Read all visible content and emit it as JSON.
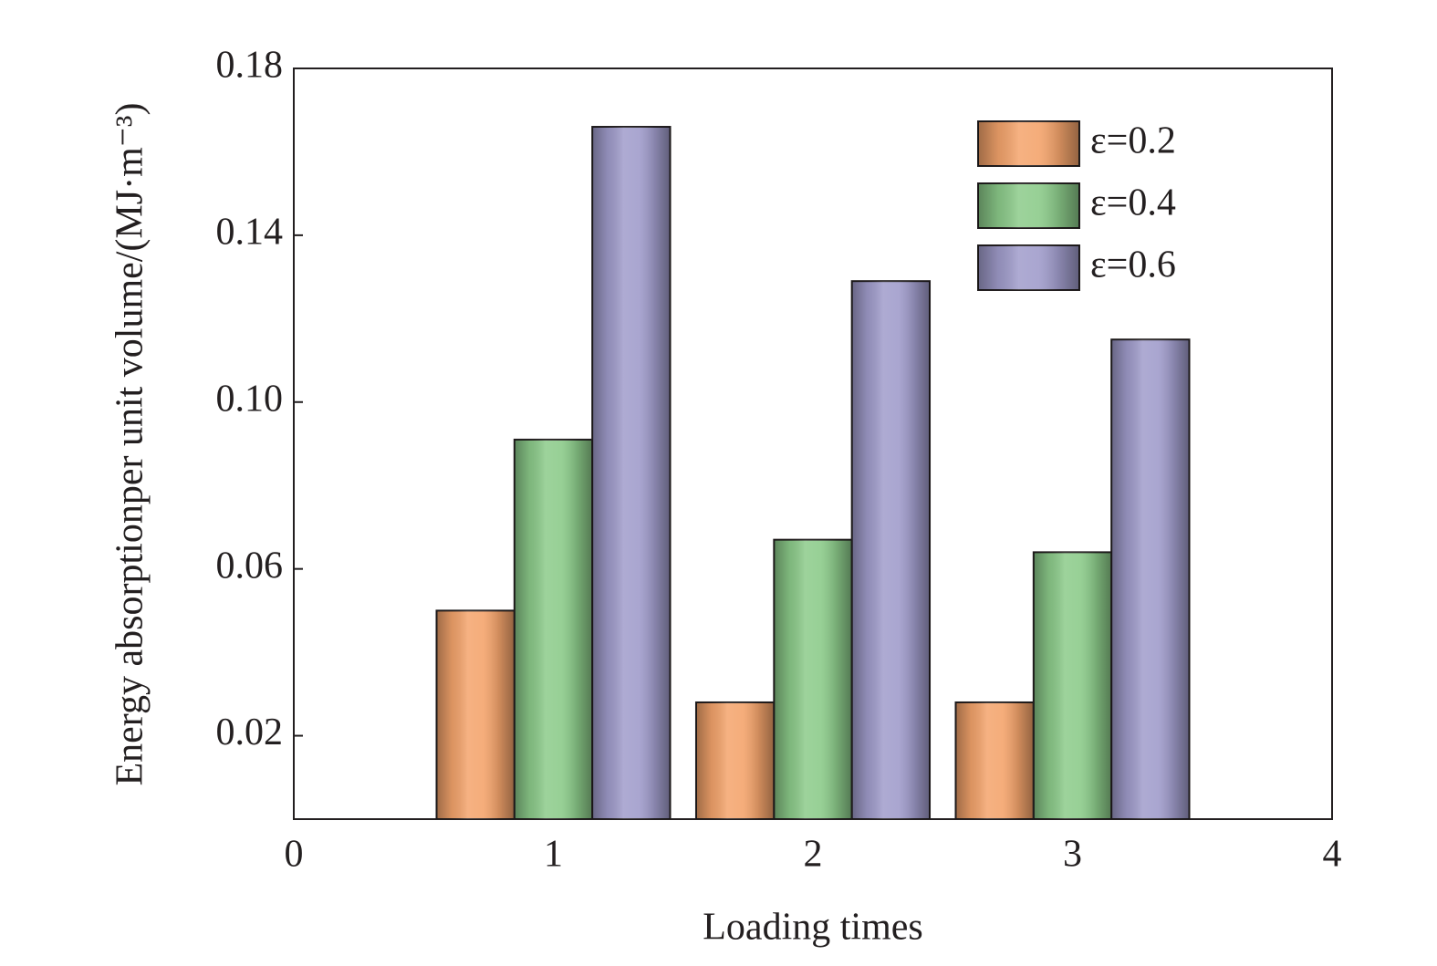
{
  "chart_data": {
    "type": "bar",
    "x_label": "Loading times",
    "y_label": "Energy absorptionper unit volume/(MJ·m⁻³)",
    "x": [
      1,
      2,
      3
    ],
    "series": [
      {
        "name": "ε=0.2",
        "color": "#f4a46c",
        "values": [
          0.05,
          0.028,
          0.028
        ]
      },
      {
        "name": "ε=0.4",
        "color": "#8ccb8a",
        "values": [
          0.091,
          0.067,
          0.064
        ]
      },
      {
        "name": "ε=0.6",
        "color": "#a09ccb",
        "values": [
          0.166,
          0.129,
          0.115
        ]
      }
    ],
    "xlim": [
      0,
      4
    ],
    "xticks": [
      0,
      1,
      2,
      3,
      4
    ],
    "ylim": [
      0,
      0.18
    ],
    "yticks": [
      {
        "value": 0.02,
        "label": "0.02"
      },
      {
        "value": 0.06,
        "label": "0.06"
      },
      {
        "value": 0.1,
        "label": "0.10"
      },
      {
        "value": 0.14,
        "label": "0.14"
      },
      {
        "value": 0.18,
        "label": "0.18"
      }
    ],
    "legend": "upper right"
  }
}
